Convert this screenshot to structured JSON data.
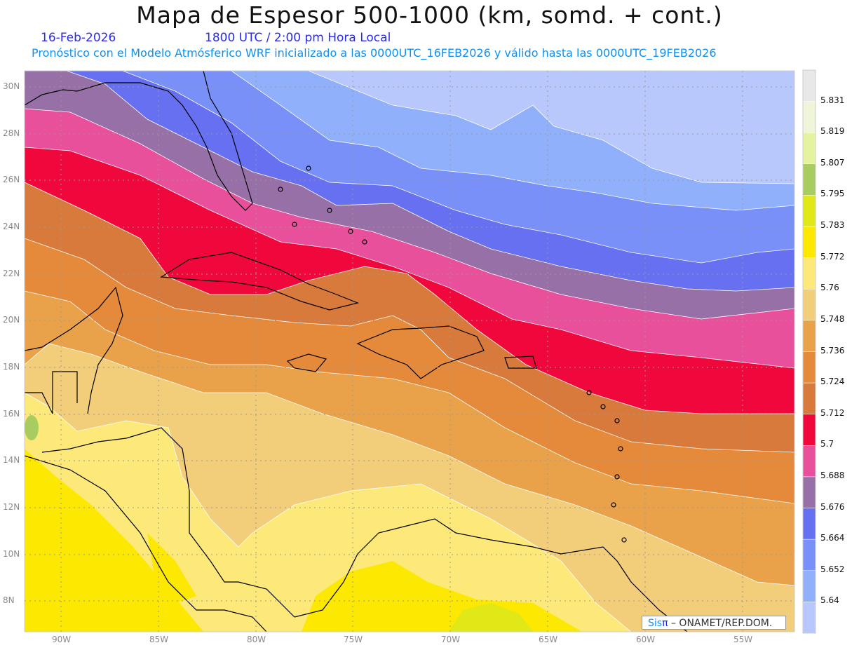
{
  "header": {
    "title": "Mapa de Espesor 500-1000 (km, somd. + cont.)",
    "date": "16-Feb-2026",
    "time": "1800 UTC / 2:00 pm Hora Local",
    "model_info": "Pronóstico con el Modelo Atmósferico WRF inicializado a las 0000UTC_16FEB2026 y válido hasta las  0000UTC_19FEB2026"
  },
  "axes": {
    "lat_labels": [
      "30N",
      "28N",
      "26N",
      "24N",
      "22N",
      "20N",
      "18N",
      "16N",
      "14N",
      "12N",
      "10N",
      "8N"
    ],
    "lon_labels": [
      "90W",
      "85W",
      "80W",
      "75W",
      "70W",
      "65W",
      "60W",
      "55W"
    ]
  },
  "colorbar": {
    "labels": [
      "5.831",
      "5.819",
      "5.807",
      "5.795",
      "5.783",
      "5.772",
      "5.76",
      "5.748",
      "5.736",
      "5.724",
      "5.712",
      "5.7",
      "5.688",
      "5.676",
      "5.664",
      "5.652",
      "5.64"
    ],
    "colors": [
      "#e8e8e8",
      "#eef5d8",
      "#e4f3a0",
      "#a8cc60",
      "#e0e818",
      "#fce800",
      "#fde97a",
      "#f2cd7a",
      "#eaa24a",
      "#e48a3a",
      "#d87a3c",
      "#f0083c",
      "#e8509c",
      "#9870a8",
      "#6670f0",
      "#7890f8",
      "#90b0fc",
      "#b8c8fc"
    ]
  },
  "logo": {
    "sis": "Sis",
    "pi": "π",
    "text": "– ONAMET/REP.DOM."
  }
}
